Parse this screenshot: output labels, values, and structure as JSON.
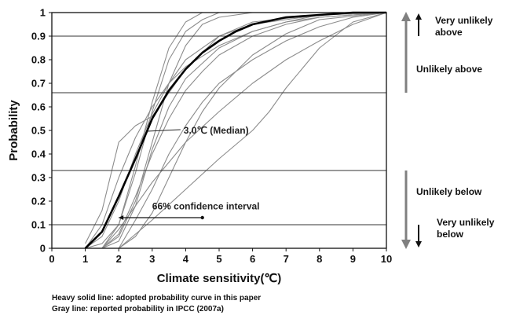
{
  "chart_data": {
    "type": "line",
    "xlabel": "Climate sensitivity(℃)",
    "ylabel": "Probability",
    "xlim": [
      0,
      10
    ],
    "ylim": [
      0,
      1
    ],
    "x_ticks": [
      "0",
      "1",
      "2",
      "3",
      "4",
      "5",
      "6",
      "7",
      "8",
      "9",
      "10"
    ],
    "y_ticks": [
      "0",
      "0.1",
      "0.2",
      "0.3",
      "0.4",
      "0.5",
      "0.6",
      "0.7",
      "0.8",
      "0.9",
      "1"
    ],
    "horizontal_lines": [
      0.1,
      0.33,
      0.66,
      0.9
    ],
    "series": [
      {
        "style": "heavy-black",
        "x": [
          1.0,
          1.5,
          2.0,
          2.5,
          3.0,
          3.5,
          4.0,
          4.5,
          5.0,
          5.5,
          6.0,
          7.0,
          8.0,
          9.0,
          10.0
        ],
        "values": [
          0.0,
          0.07,
          0.22,
          0.38,
          0.55,
          0.67,
          0.76,
          0.83,
          0.88,
          0.92,
          0.95,
          0.98,
          0.99,
          1.0,
          1.0
        ]
      },
      {
        "style": "gray",
        "x": [
          1.0,
          1.5,
          2.0,
          2.5,
          3.0,
          3.5,
          4.0,
          5.0,
          6.0,
          8.0,
          10.0
        ],
        "values": [
          0.02,
          0.16,
          0.45,
          0.52,
          0.56,
          0.66,
          0.76,
          0.9,
          0.96,
          0.99,
          1.0
        ]
      },
      {
        "style": "gray",
        "x": [
          1.5,
          2.0,
          2.5,
          3.0,
          3.5,
          4.0,
          4.5,
          5.0,
          6.0,
          8.0,
          10.0
        ],
        "values": [
          0.0,
          0.05,
          0.2,
          0.45,
          0.7,
          0.86,
          0.95,
          0.98,
          1.0,
          1.0,
          1.0
        ]
      },
      {
        "style": "gray",
        "x": [
          1.5,
          2.0,
          2.5,
          3.0,
          3.5,
          4.0,
          4.5,
          5.0,
          6.0,
          8.0,
          10.0
        ],
        "values": [
          0.0,
          0.1,
          0.35,
          0.62,
          0.85,
          0.96,
          1.0,
          1.0,
          1.0,
          1.0,
          1.0
        ]
      },
      {
        "style": "gray",
        "x": [
          1.0,
          1.5,
          2.0,
          2.5,
          3.0,
          3.5,
          4.0,
          5.0,
          6.0,
          7.0,
          8.0,
          10.0
        ],
        "values": [
          0.0,
          0.1,
          0.3,
          0.47,
          0.6,
          0.7,
          0.77,
          0.86,
          0.92,
          0.96,
          0.98,
          1.0
        ]
      },
      {
        "style": "gray",
        "x": [
          1.5,
          2.0,
          2.5,
          3.0,
          3.5,
          4.0,
          4.5,
          5.0,
          6.0,
          7.0,
          8.0,
          10.0
        ],
        "values": [
          0.0,
          0.06,
          0.22,
          0.4,
          0.55,
          0.67,
          0.75,
          0.82,
          0.9,
          0.95,
          0.98,
          1.0
        ]
      },
      {
        "style": "gray",
        "x": [
          1.5,
          2.0,
          3.0,
          4.0,
          5.0,
          6.0,
          7.0,
          8.0,
          9.0,
          10.0
        ],
        "values": [
          0.0,
          0.08,
          0.28,
          0.45,
          0.58,
          0.7,
          0.8,
          0.88,
          0.95,
          1.0
        ]
      },
      {
        "style": "gray",
        "x": [
          2.0,
          2.5,
          3.0,
          3.5,
          4.0,
          4.5,
          5.0,
          6.0,
          7.0,
          8.0,
          9.0,
          10.0
        ],
        "values": [
          0.0,
          0.12,
          0.25,
          0.4,
          0.52,
          0.62,
          0.7,
          0.8,
          0.88,
          0.94,
          0.98,
          1.0
        ]
      },
      {
        "style": "gray",
        "x": [
          2.0,
          3.0,
          4.0,
          5.0,
          6.0,
          6.5,
          7.0,
          8.0,
          9.0,
          10.0
        ],
        "values": [
          0.0,
          0.12,
          0.25,
          0.38,
          0.5,
          0.58,
          0.68,
          0.85,
          0.96,
          1.0
        ]
      },
      {
        "style": "gray",
        "x": [
          1.0,
          1.5,
          2.0,
          2.5,
          3.0,
          3.5,
          4.0,
          4.5,
          5.0,
          6.0,
          8.0,
          10.0
        ],
        "values": [
          0.0,
          0.02,
          0.1,
          0.32,
          0.58,
          0.8,
          0.92,
          0.97,
          1.0,
          1.0,
          1.0,
          1.0
        ]
      },
      {
        "style": "gray",
        "x": [
          1.5,
          2.0,
          2.5,
          3.0,
          3.5,
          4.0,
          5.0,
          6.0,
          7.0,
          8.0,
          10.0
        ],
        "values": [
          0.0,
          0.03,
          0.18,
          0.42,
          0.6,
          0.72,
          0.85,
          0.92,
          0.96,
          0.99,
          1.0
        ]
      },
      {
        "style": "gray",
        "x": [
          1.0,
          1.5,
          2.0,
          2.5,
          3.0,
          3.5,
          4.0,
          5.0,
          6.0,
          8.0,
          10.0
        ],
        "values": [
          0.0,
          0.05,
          0.2,
          0.4,
          0.57,
          0.7,
          0.8,
          0.9,
          0.95,
          0.99,
          1.0
        ]
      },
      {
        "style": "gray",
        "x": [
          2.0,
          2.5,
          3.0,
          3.5,
          4.0,
          4.5,
          5.0,
          6.0,
          7.0,
          8.0,
          10.0
        ],
        "values": [
          0.0,
          0.05,
          0.15,
          0.3,
          0.45,
          0.58,
          0.68,
          0.82,
          0.91,
          0.97,
          1.0
        ]
      }
    ],
    "annotations": {
      "median_label": "3.0℃ (Median)",
      "median_x": 3.0,
      "ci_label": "66% confidence interval",
      "ci_range": [
        2.0,
        4.5
      ]
    },
    "right_panel": {
      "very_unlikely_above": "Very unlikely\nabove",
      "unlikely_above": "Unlikely above",
      "unlikely_below": "Unlikely below",
      "very_unlikely_below": "Very unlikely\nbelow"
    },
    "footnotes": [
      "Heavy solid line: adopted probability curve in this paper",
      "Gray line: reported probability in IPCC (2007a)"
    ],
    "colors": {
      "heavy": "#000000",
      "gray": "#8c8c8c",
      "arrow_gray": "#808080",
      "gridline": "#333333"
    }
  }
}
